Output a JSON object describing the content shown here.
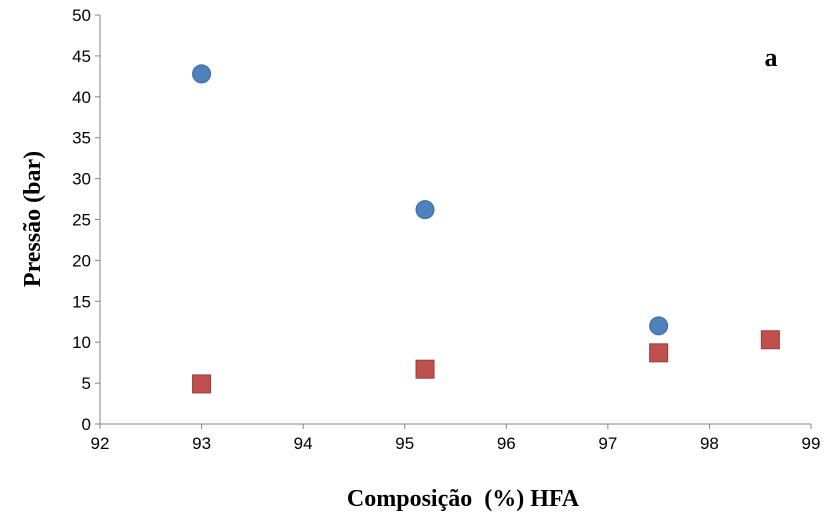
{
  "chart_data": {
    "type": "scatter",
    "xlabel": "Composição  (%) HFA",
    "ylabel": "Pressão (bar)",
    "panel_label": "a",
    "xlim": [
      92,
      99
    ],
    "ylim": [
      0,
      50
    ],
    "xticks": [
      92,
      93,
      94,
      95,
      96,
      97,
      98,
      99
    ],
    "yticks": [
      0,
      5,
      10,
      15,
      20,
      25,
      30,
      35,
      40,
      45,
      50
    ],
    "grid": false,
    "legend": "none",
    "series": [
      {
        "marker": "circle",
        "color": "#4F81BD",
        "points": [
          {
            "x": 93.0,
            "y": 42.8
          },
          {
            "x": 95.2,
            "y": 26.2
          },
          {
            "x": 97.5,
            "y": 12.0
          }
        ]
      },
      {
        "marker": "square",
        "color": "#C0504D",
        "points": [
          {
            "x": 93.0,
            "y": 4.9
          },
          {
            "x": 95.2,
            "y": 6.7
          },
          {
            "x": 97.5,
            "y": 8.7
          },
          {
            "x": 98.6,
            "y": 10.3
          }
        ]
      }
    ]
  }
}
